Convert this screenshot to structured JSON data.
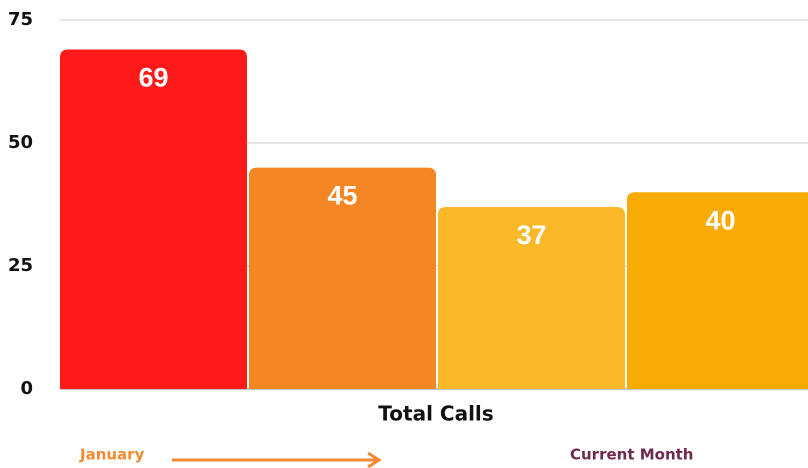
{
  "chart_data": {
    "type": "bar",
    "categories": [
      null,
      null,
      null,
      null
    ],
    "values": [
      69,
      45,
      37,
      40
    ],
    "colors": [
      "#ff1a1a",
      "#f48724",
      "#fbb92a",
      "#f8aa05"
    ],
    "ylim": [
      0,
      75
    ],
    "yticks": [
      0,
      25,
      50,
      75
    ],
    "grid": true,
    "x_label": "Total Calls",
    "annotations": [
      {
        "text": "January",
        "color": "#f08a34"
      },
      {
        "text": "Current Month",
        "color": "#6e2a4e"
      }
    ]
  }
}
